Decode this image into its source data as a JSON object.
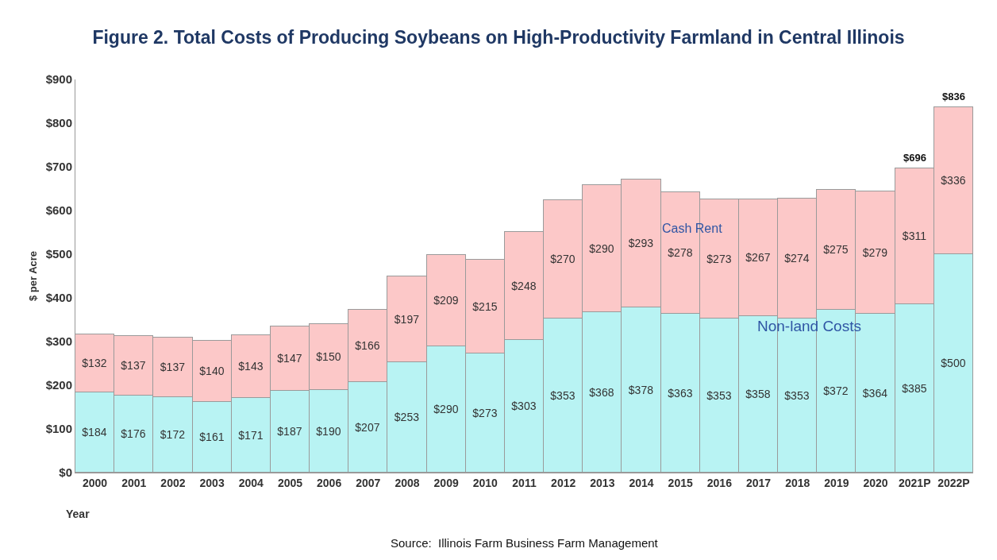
{
  "chart_data": {
    "type": "bar",
    "title": "Figure 2. Total Costs of Producing Soybeans on High-Productivity Farmland in Central Illinois",
    "xlabel": "Year",
    "ylabel": "$ per Acre",
    "annotations": [
      "Source:  Illinois Farm Business Farm Management"
    ],
    "categories": [
      "2000",
      "2001",
      "2002",
      "2003",
      "2004",
      "2005",
      "2006",
      "2007",
      "2008",
      "2009",
      "2010",
      "2011",
      "2012",
      "2013",
      "2014",
      "2015",
      "2016",
      "2017",
      "2018",
      "2019",
      "2020",
      "2021P",
      "2022P"
    ],
    "stacked": true,
    "series": [
      {
        "name": "Non-land Costs",
        "color": "#b8f3f3",
        "values": [
          184,
          176,
          172,
          161,
          171,
          187,
          190,
          207,
          253,
          290,
          273,
          303,
          353,
          368,
          378,
          363,
          353,
          358,
          353,
          372,
          364,
          385,
          500
        ],
        "value_labels": [
          "$184",
          "$176",
          "$172",
          "$161",
          "$171",
          "$187",
          "$190",
          "$207",
          "$253",
          "$290",
          "$273",
          "$303",
          "$353",
          "$368",
          "$378",
          "$363",
          "$353",
          "$358",
          "$353",
          "$372",
          "$364",
          "$385",
          "$500"
        ]
      },
      {
        "name": "Cash Rent",
        "color": "#fcc8c8",
        "values": [
          132,
          137,
          137,
          140,
          143,
          147,
          150,
          166,
          197,
          209,
          215,
          248,
          270,
          290,
          293,
          278,
          273,
          267,
          274,
          275,
          279,
          311,
          336
        ],
        "value_labels": [
          "$132",
          "$137",
          "$137",
          "$140",
          "$143",
          "$147",
          "$150",
          "$166",
          "$197",
          "$209",
          "$215",
          "$248",
          "$270",
          "$290",
          "$293",
          "$278",
          "$273",
          "$267",
          "$274",
          "$275",
          "$279",
          "$311",
          "$336"
        ]
      }
    ],
    "totals": [
      null,
      null,
      null,
      null,
      null,
      null,
      null,
      null,
      null,
      null,
      null,
      null,
      null,
      null,
      null,
      null,
      null,
      null,
      null,
      null,
      null,
      "$696",
      "$836"
    ],
    "ylim": [
      0,
      900
    ],
    "yticks": [
      {
        "value": 0,
        "label": "$0"
      },
      {
        "value": 100,
        "label": "$100"
      },
      {
        "value": 200,
        "label": "$200"
      },
      {
        "value": 300,
        "label": "$300"
      },
      {
        "value": 400,
        "label": "$400"
      },
      {
        "value": 500,
        "label": "$500"
      },
      {
        "value": 600,
        "label": "$600"
      },
      {
        "value": 700,
        "label": "$700"
      },
      {
        "value": 800,
        "label": "$800"
      },
      {
        "value": 900,
        "label": "$900"
      }
    ],
    "grid": false,
    "legend": false
  }
}
